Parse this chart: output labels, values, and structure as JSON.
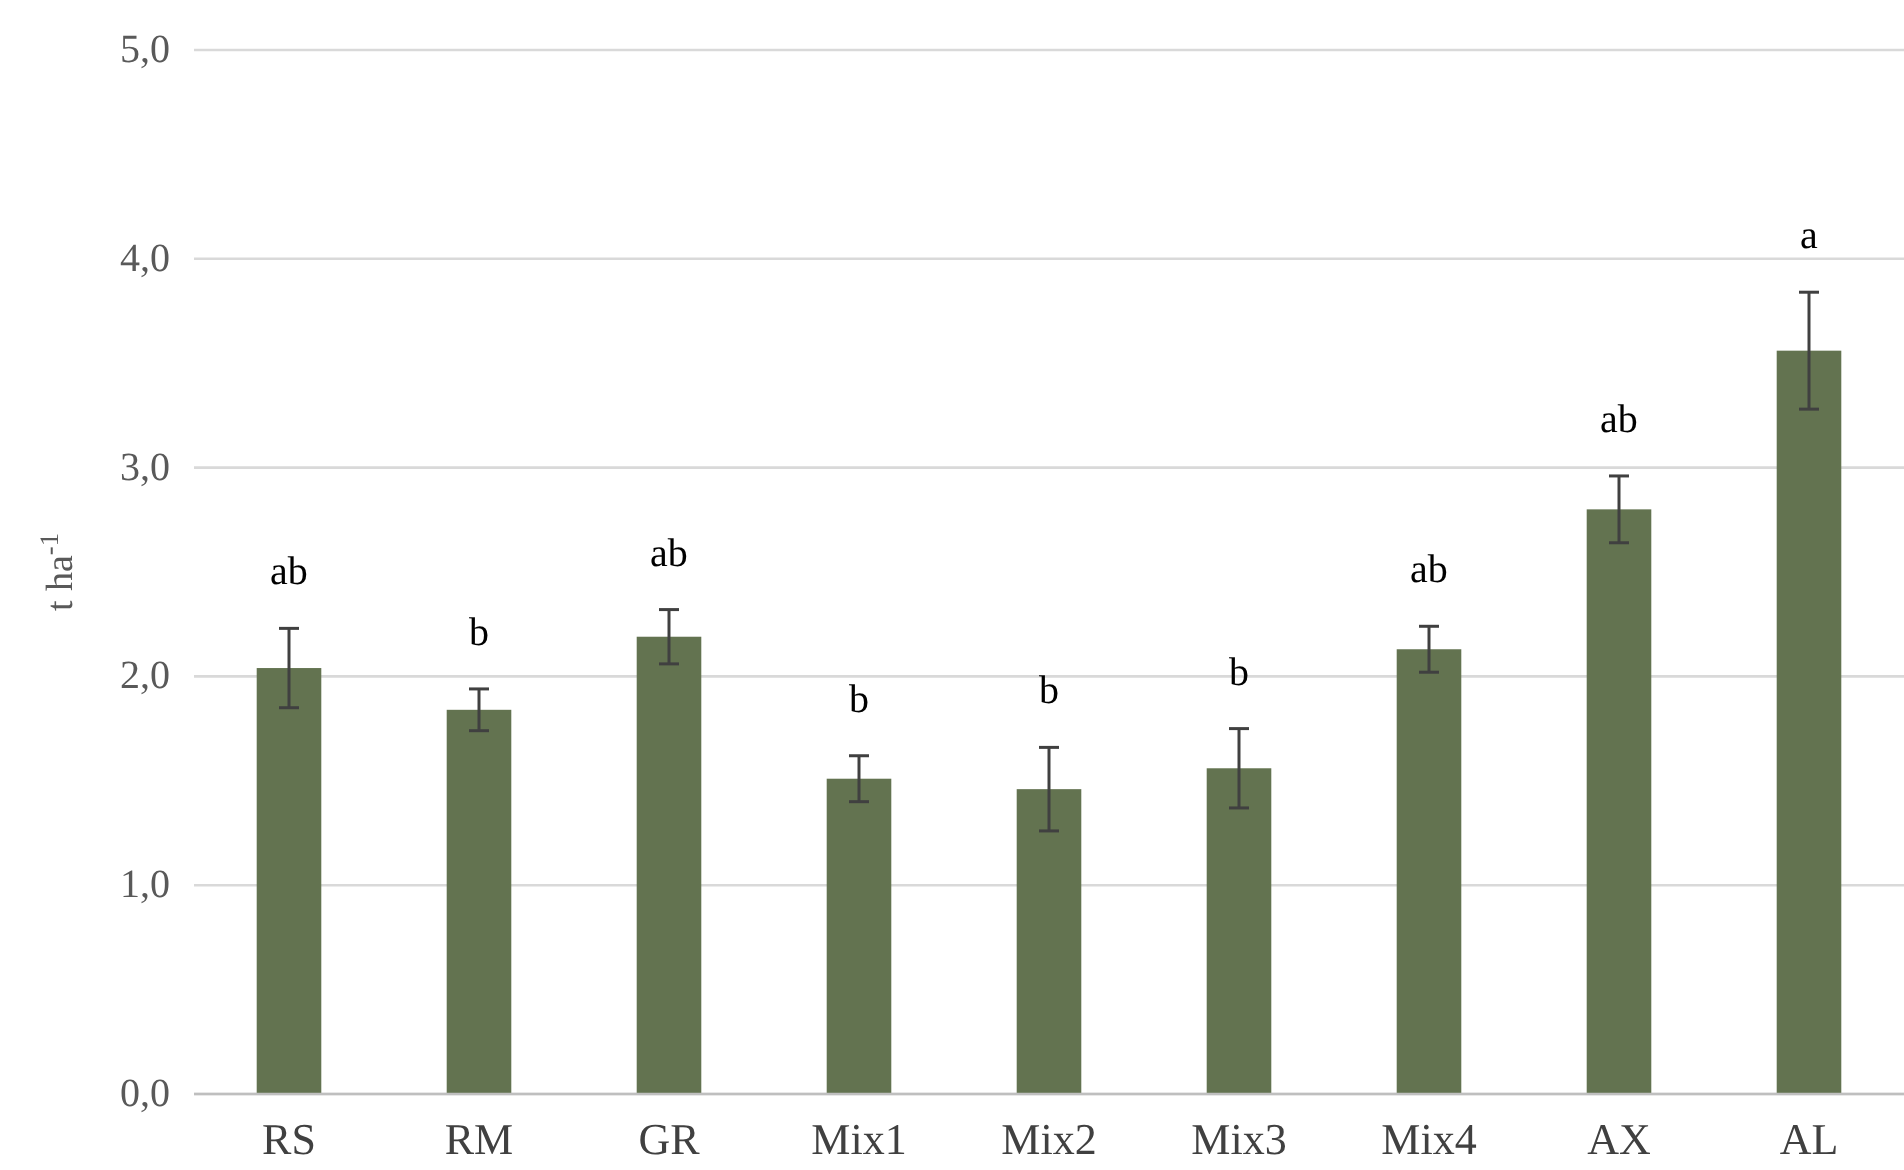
{
  "chart_data": {
    "type": "bar",
    "ylabel": "t ha$^{-1}$",
    "categories": [
      "RS",
      "RM",
      "GR",
      "Mix1",
      "Mix2",
      "Mix3",
      "Mix4",
      "AX",
      "AL"
    ],
    "values": [
      2.04,
      1.84,
      2.19,
      1.51,
      1.46,
      1.56,
      2.13,
      2.8,
      3.56
    ],
    "errors": [
      0.19,
      0.1,
      0.13,
      0.11,
      0.2,
      0.19,
      0.11,
      0.16,
      0.28
    ],
    "color": "#637350",
    "ylim": [
      0,
      5
    ],
    "yticks": [
      {
        "value": 0,
        "label": "0,0"
      },
      {
        "value": 1,
        "label": "1,0"
      },
      {
        "value": 2,
        "label": "2,0"
      },
      {
        "value": 3,
        "label": "3,0"
      },
      {
        "value": 4,
        "label": "4,0"
      },
      {
        "value": 5,
        "label": "5,0"
      }
    ],
    "grid": "y",
    "annotations": [
      "ab",
      "b",
      "ab",
      "b",
      "b",
      "b",
      "ab",
      "ab",
      "a"
    ]
  }
}
